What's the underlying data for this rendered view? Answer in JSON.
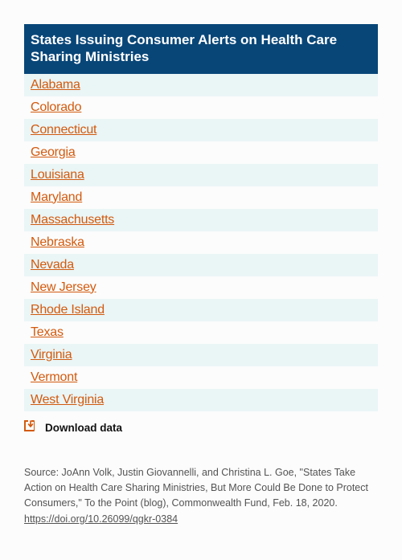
{
  "table": {
    "header": "States Issuing Consumer Alerts on Health Care Sharing Ministries",
    "header_bg": "#084678",
    "header_text_color": "#ffffff",
    "row_odd_bg": "#eaf5f6",
    "row_even_bg": "#fcfcfc",
    "link_color": "#d35a0d",
    "states": [
      "Alabama",
      "Colorado",
      "Connecticut",
      "Georgia",
      "Louisiana",
      "Maryland",
      "Massachusetts",
      "Nebraska",
      "Nevada",
      "New Jersey",
      "Rhode Island",
      "Texas",
      "Virginia",
      "Vermont",
      "West Virginia"
    ]
  },
  "download": {
    "label": "Download data",
    "icon_color": "#d35a0d"
  },
  "source": {
    "text": "Source: JoAnn Volk, Justin Giovannelli, and Christina L. Goe, \"States Take Action on Health Care Sharing Ministries, But More Could Be Done to Protect Consumers,\" To the Point (blog), Commonwealth Fund, Feb. 18, 2020.",
    "link_text": "https://doi.org/10.26099/qgkr-0384",
    "text_color": "#535353"
  }
}
